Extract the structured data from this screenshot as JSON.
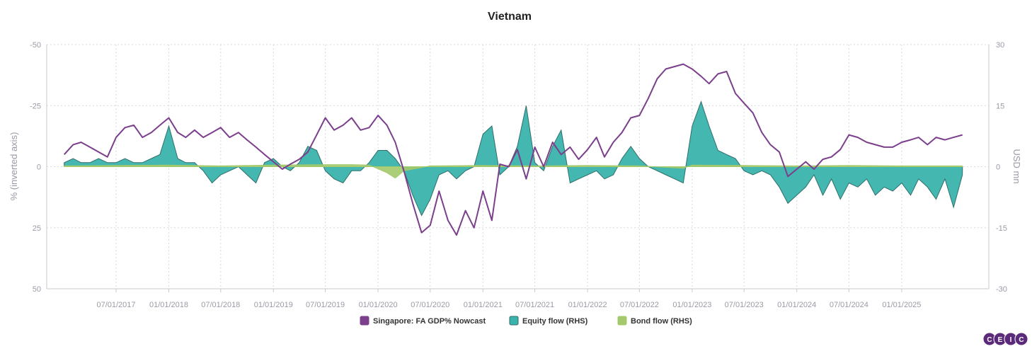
{
  "chart_data": {
    "type": "line",
    "title": "Vietnam",
    "ylabel_left": "% (inverted axis)",
    "ylabel_right": "USD mn",
    "ylim_left": [
      -50,
      50
    ],
    "ylim_left_inverted": true,
    "ylim_right": [
      -30,
      30
    ],
    "yticks_left": [
      "-50",
      "-25",
      "0",
      "25",
      "50"
    ],
    "yticks_right": [
      "30",
      "15",
      "0",
      "-15",
      "-30"
    ],
    "xticks": [
      "07/01/2017",
      "01/01/2018",
      "07/01/2018",
      "01/01/2019",
      "07/01/2019",
      "01/01/2020",
      "07/01/2020",
      "01/01/2021",
      "07/01/2021",
      "01/01/2022",
      "07/01/2022",
      "01/01/2023",
      "07/01/2023",
      "01/01/2024",
      "07/01/2024",
      "01/01/2025"
    ],
    "grid": true,
    "legend_position": "bottom",
    "colors": {
      "gdp": "#7b3f8c",
      "equity": "#3bb3ad",
      "equity_edge": "#2f6e6a",
      "bond": "#a3c96a"
    },
    "series": [
      {
        "name": "Singapore: FA GDP% Nowcast",
        "axis": "left",
        "kind": "line",
        "x": [
          "2017-01-01",
          "2017-02-01",
          "2017-03-01",
          "2017-04-01",
          "2017-05-01",
          "2017-06-01",
          "2017-07-01",
          "2017-08-01",
          "2017-09-01",
          "2017-10-01",
          "2017-11-01",
          "2017-12-01",
          "2018-01-01",
          "2018-02-01",
          "2018-03-01",
          "2018-04-01",
          "2018-05-01",
          "2018-06-01",
          "2018-07-01",
          "2018-08-01",
          "2018-09-01",
          "2018-10-01",
          "2018-11-01",
          "2018-12-01",
          "2019-01-01",
          "2019-02-01",
          "2019-03-01",
          "2019-04-01",
          "2019-05-01",
          "2019-06-01",
          "2019-07-01",
          "2019-08-01",
          "2019-09-01",
          "2019-10-01",
          "2019-11-01",
          "2019-12-01",
          "2020-01-01",
          "2020-02-01",
          "2020-03-01",
          "2020-04-01",
          "2020-05-01",
          "2020-06-01",
          "2020-07-01",
          "2020-08-01",
          "2020-09-01",
          "2020-10-01",
          "2020-11-01",
          "2020-12-01",
          "2021-01-01",
          "2021-02-01",
          "2021-03-01",
          "2021-04-01",
          "2021-05-01",
          "2021-06-01",
          "2021-07-01",
          "2021-08-01",
          "2021-09-01",
          "2021-10-01",
          "2021-11-01",
          "2021-12-01",
          "2022-01-01",
          "2022-02-01",
          "2022-03-01",
          "2022-04-01",
          "2022-05-01",
          "2022-06-01",
          "2022-07-01",
          "2022-08-01",
          "2022-09-01",
          "2022-10-01",
          "2022-11-01",
          "2022-12-01",
          "2023-01-01",
          "2023-02-01",
          "2023-03-01",
          "2023-04-01",
          "2023-05-01",
          "2023-06-01",
          "2023-07-01",
          "2023-08-01",
          "2023-09-01",
          "2023-10-01",
          "2023-11-01",
          "2023-12-01",
          "2024-01-01",
          "2024-02-01",
          "2024-03-01",
          "2024-04-01",
          "2024-05-01",
          "2024-06-01",
          "2024-07-01",
          "2024-08-01",
          "2024-09-01",
          "2024-10-01",
          "2024-11-01",
          "2024-12-01",
          "2025-01-01",
          "2025-02-01",
          "2025-03-01",
          "2025-04-01",
          "2025-05-01",
          "2025-06-01",
          "2025-07-01",
          "2025-08-01"
        ],
        "values": [
          -5,
          -9,
          -10,
          -8,
          -6,
          -4,
          -12,
          -16,
          -17,
          -12,
          -14,
          -17,
          -20,
          -14,
          -12,
          -15,
          -12,
          -14,
          -16,
          -12,
          -14,
          -11,
          -8,
          -5,
          -2,
          1,
          -1,
          -3,
          -6,
          -13,
          -20,
          -15,
          -17,
          -20,
          -15,
          -16,
          -21,
          -17,
          -10,
          2,
          15,
          27,
          24,
          10,
          22,
          28,
          18,
          25,
          10,
          22,
          -1,
          0,
          -7,
          5,
          -8,
          0,
          -10,
          -5,
          -8,
          -3,
          -7,
          -12,
          -4,
          -10,
          -14,
          -20,
          -21,
          -28,
          -36,
          -40,
          -41,
          -42,
          -40,
          -37,
          -34,
          -38,
          -39,
          -30,
          -26,
          -22,
          -14,
          -9,
          -6,
          4,
          1,
          -2,
          1,
          -3,
          -4,
          -7,
          -13,
          -12,
          -10,
          -9,
          -8,
          -8,
          -10,
          -11,
          -12,
          -9,
          -12,
          -11,
          -12,
          -13
        ]
      },
      {
        "name": "Equity flow (RHS)",
        "axis": "right",
        "kind": "area",
        "x": [
          "2017-01-01",
          "2017-02-01",
          "2017-03-01",
          "2017-04-01",
          "2017-05-01",
          "2017-06-01",
          "2017-07-01",
          "2017-08-01",
          "2017-09-01",
          "2017-10-01",
          "2017-11-01",
          "2017-12-01",
          "2018-01-01",
          "2018-02-01",
          "2018-03-01",
          "2018-04-01",
          "2018-05-01",
          "2018-06-01",
          "2018-07-01",
          "2018-08-01",
          "2018-09-01",
          "2018-10-01",
          "2018-11-01",
          "2018-12-01",
          "2019-01-01",
          "2019-02-01",
          "2019-03-01",
          "2019-04-01",
          "2019-05-01",
          "2019-06-01",
          "2019-07-01",
          "2019-08-01",
          "2019-09-01",
          "2019-10-01",
          "2019-11-01",
          "2019-12-01",
          "2020-01-01",
          "2020-02-01",
          "2020-03-01",
          "2020-04-01",
          "2020-05-01",
          "2020-06-01",
          "2020-07-01",
          "2020-08-01",
          "2020-09-01",
          "2020-10-01",
          "2020-11-01",
          "2020-12-01",
          "2021-01-01",
          "2021-02-01",
          "2021-03-01",
          "2021-04-01",
          "2021-05-01",
          "2021-06-01",
          "2021-07-01",
          "2021-08-01",
          "2021-09-01",
          "2021-10-01",
          "2021-11-01",
          "2021-12-01",
          "2022-01-01",
          "2022-02-01",
          "2022-03-01",
          "2022-04-01",
          "2022-05-01",
          "2022-06-01",
          "2022-07-01",
          "2022-08-01",
          "2022-09-01",
          "2022-10-01",
          "2022-11-01",
          "2022-12-01",
          "2023-01-01",
          "2023-02-01",
          "2023-03-01",
          "2023-04-01",
          "2023-05-01",
          "2023-06-01",
          "2023-07-01",
          "2023-08-01",
          "2023-09-01",
          "2023-10-01",
          "2023-11-01",
          "2023-12-01",
          "2024-01-01",
          "2024-02-01",
          "2024-03-01",
          "2024-04-01",
          "2024-05-01",
          "2024-06-01",
          "2024-07-01",
          "2024-08-01",
          "2024-09-01",
          "2024-10-01",
          "2024-11-01",
          "2024-12-01",
          "2025-01-01",
          "2025-02-01",
          "2025-03-01",
          "2025-04-01",
          "2025-05-01",
          "2025-06-01",
          "2025-07-01",
          "2025-08-01"
        ],
        "values": [
          1,
          2,
          1,
          1,
          2,
          1,
          1,
          2,
          1,
          1,
          2,
          3,
          10,
          2,
          1,
          1,
          -1,
          -4,
          -2,
          -1,
          0,
          -2,
          -4,
          1,
          2,
          0,
          -1,
          1,
          5,
          4,
          -1,
          -3,
          -4,
          -1,
          -1,
          1,
          4,
          4,
          2,
          -1,
          -7,
          -12,
          -8,
          -2,
          -1,
          -3,
          -1,
          0,
          8,
          10,
          -2,
          0,
          5,
          15,
          1,
          -1,
          5,
          9,
          -4,
          -3,
          -2,
          -1,
          -3,
          -2,
          2,
          5,
          2,
          0,
          -1,
          -2,
          -3,
          -4,
          10,
          16,
          10,
          4,
          3,
          2,
          -1,
          -2,
          -1,
          -2,
          -5,
          -9,
          -7,
          -5,
          -2,
          -7,
          -3,
          -8,
          -4,
          -5,
          -3,
          -7,
          -5,
          -6,
          -4,
          -7,
          -3,
          -5,
          -8,
          -3,
          -10,
          -2
        ]
      },
      {
        "name": "Bond flow (RHS)",
        "axis": "right",
        "kind": "area",
        "x": [
          "2017-01-01",
          "2017-07-01",
          "2018-01-01",
          "2018-07-01",
          "2019-01-01",
          "2019-07-01",
          "2019-10-01",
          "2019-12-01",
          "2020-02-01",
          "2020-03-01",
          "2020-04-01",
          "2020-07-01",
          "2021-01-01",
          "2021-07-01",
          "2022-01-01",
          "2022-07-01",
          "2022-12-01",
          "2023-01-01",
          "2023-07-01",
          "2024-01-01",
          "2024-07-01",
          "2025-01-01",
          "2025-08-01"
        ],
        "values": [
          0.2,
          0.3,
          0.4,
          0.2,
          0.4,
          0.5,
          0.5,
          0.4,
          -1.5,
          -2.8,
          -1,
          0.2,
          0.3,
          0.2,
          0.3,
          0.2,
          -0.4,
          0.4,
          0.3,
          0.2,
          0.3,
          0.2,
          0.2
        ]
      }
    ]
  },
  "logo": {
    "letters": [
      "C",
      "E",
      "I",
      "C"
    ],
    "color": "#5b2a7a"
  }
}
